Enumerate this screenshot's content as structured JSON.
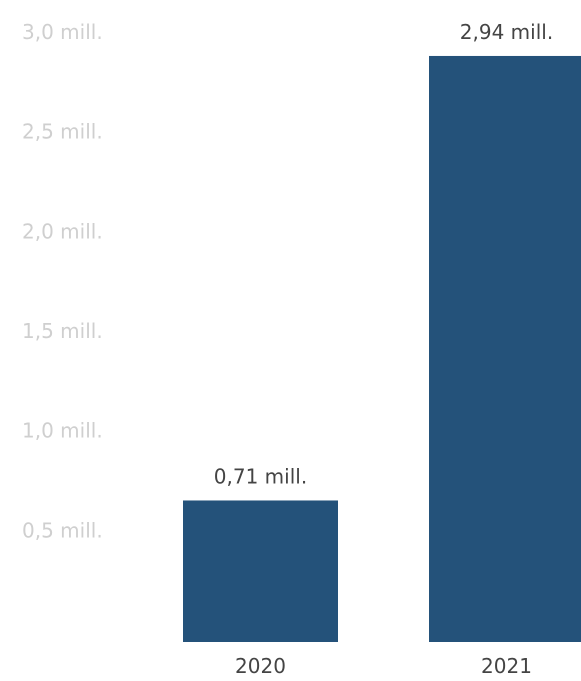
{
  "chart_data": {
    "type": "bar",
    "title": "",
    "xlabel": "",
    "ylabel": "",
    "categories": [
      "2020",
      "2021"
    ],
    "values": [
      0.71,
      2.94
    ],
    "data_labels": [
      "0,71 mill.",
      "2,94 mill."
    ],
    "ylim": [
      0,
      3.0
    ],
    "y_ticks": [
      {
        "value": 0.5,
        "label": "0,5 mill."
      },
      {
        "value": 1.0,
        "label": "1,0 mill."
      },
      {
        "value": 1.5,
        "label": "1,5 mill."
      },
      {
        "value": 2.0,
        "label": "2,0 mill."
      },
      {
        "value": 2.5,
        "label": "2,5 mill."
      },
      {
        "value": 3.0,
        "label": "3,0 mill."
      }
    ],
    "grid": false,
    "legend": "none",
    "colors": {
      "bar": "#24527a",
      "y_tick_text": "#cfcfcf",
      "label_text": "#444444"
    }
  }
}
